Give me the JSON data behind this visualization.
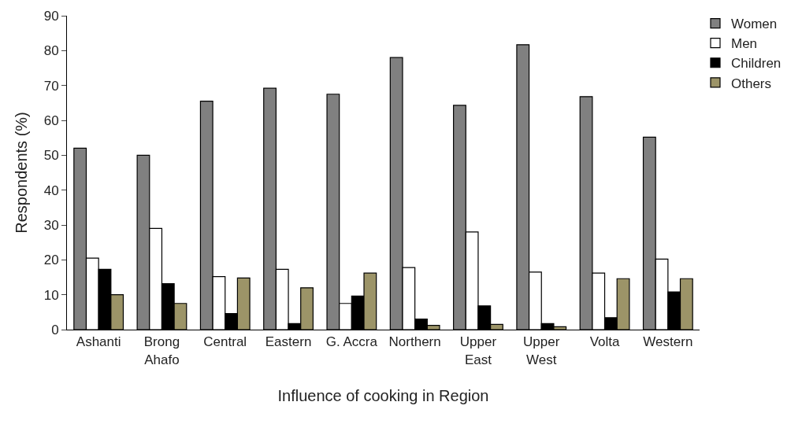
{
  "chart_data": {
    "type": "bar",
    "xlabel": "Influence of cooking in Region",
    "ylabel": "Respondents (%)",
    "categories": [
      "Ashanti",
      "Brong\nAhafo",
      "Central",
      "Eastern",
      "G. Accra",
      "Northern",
      "Upper\nEast",
      "Upper\nWest",
      "Volta",
      "Western"
    ],
    "series": [
      {
        "name": "Women",
        "color": "#808080",
        "values": [
          52,
          50,
          65.5,
          69.2,
          67.5,
          78,
          64.3,
          81.7,
          66.8,
          55.2
        ]
      },
      {
        "name": "Men",
        "color": "#ffffff",
        "values": [
          20.5,
          29,
          15.2,
          17.3,
          7.5,
          17.8,
          28,
          16.5,
          16.2,
          20.2
        ]
      },
      {
        "name": "Children",
        "color": "#000000",
        "values": [
          17.3,
          13.2,
          4.6,
          1.7,
          9.6,
          3,
          6.8,
          1.7,
          3.4,
          10.8
        ]
      },
      {
        "name": "Others",
        "color": "#9c9468",
        "values": [
          10,
          7.5,
          14.8,
          12,
          16.2,
          1.2,
          1.5,
          0.8,
          14.6,
          14.6
        ]
      }
    ],
    "ylim": [
      0,
      90
    ],
    "yticks": [
      0,
      10,
      20,
      30,
      40,
      50,
      60,
      70,
      80,
      90
    ],
    "legend": "top right"
  }
}
